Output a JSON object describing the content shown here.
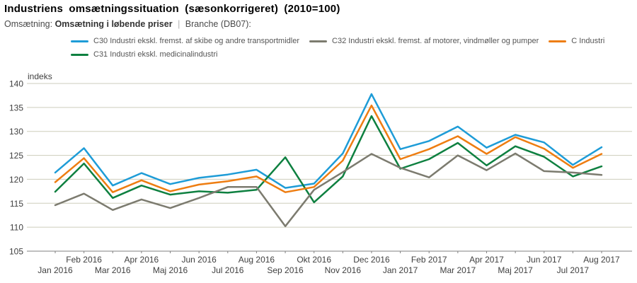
{
  "header": {
    "title": "Industriens omsætningssituation (sæsonkorrigeret) (2010=100)",
    "filter_label": "Omsætning:",
    "filter_value": "Omsætning i løbende priser",
    "separator": "|",
    "branche_label": "Branche (DB07):"
  },
  "chart_data": {
    "type": "line",
    "ylabel": "indeks",
    "ylim": [
      105,
      140
    ],
    "ytick_step": 5,
    "grid": true,
    "legend_position": "top",
    "categories": [
      "Jan 2016",
      "Feb 2016",
      "Mar 2016",
      "Apr 2016",
      "Maj 2016",
      "Jun 2016",
      "Jul 2016",
      "Aug 2016",
      "Sep 2016",
      "Okt 2016",
      "Nov 2016",
      "Dec 2016",
      "Jan 2017",
      "Feb 2017",
      "Mar 2017",
      "Apr 2017",
      "Maj 2017",
      "Jun 2017",
      "Jul 2017",
      "Aug 2017"
    ],
    "series": [
      {
        "name": "C30 Industri ekskl. fremst. af skibe og andre transportmidler",
        "color": "#1E9CD7",
        "values": [
          121.4,
          126.5,
          118.7,
          121.3,
          119.0,
          120.3,
          121.0,
          122.0,
          118.2,
          119.1,
          125.4,
          137.8,
          126.3,
          128.0,
          131.0,
          126.6,
          129.3,
          127.7,
          123.0,
          126.7
        ]
      },
      {
        "name": "C32 Industri ekskl. fremst. af motorer, vindmøller og pumper",
        "color": "#7C7B6F",
        "values": [
          114.6,
          117.0,
          113.6,
          115.8,
          114.0,
          116.1,
          118.4,
          118.4,
          110.2,
          117.8,
          121.5,
          125.3,
          122.4,
          120.4,
          125.0,
          121.9,
          125.4,
          121.7,
          121.4,
          120.9
        ]
      },
      {
        "name": "C Industri",
        "color": "#EE7D11",
        "values": [
          119.4,
          124.4,
          117.3,
          119.8,
          117.5,
          118.9,
          119.6,
          120.6,
          117.3,
          118.4,
          123.9,
          135.4,
          124.2,
          126.3,
          129.0,
          125.3,
          128.8,
          126.4,
          122.4,
          125.3
        ]
      },
      {
        "name": "C31 Industri ekskl. medicinalindustri",
        "color": "#0E8040",
        "values": [
          117.4,
          123.3,
          116.1,
          118.7,
          116.8,
          117.5,
          117.2,
          117.8,
          124.6,
          115.2,
          120.6,
          133.2,
          122.2,
          124.2,
          127.6,
          122.9,
          126.9,
          124.7,
          120.6,
          122.7
        ]
      }
    ]
  }
}
